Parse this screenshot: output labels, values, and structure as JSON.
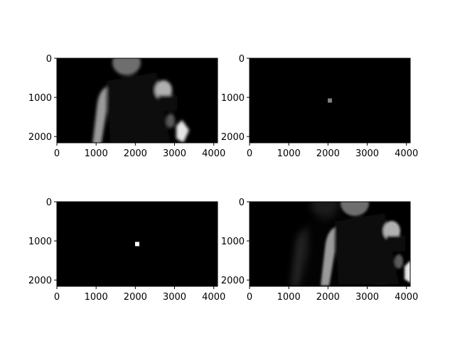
{
  "chart_data": [
    {
      "type": "image",
      "content": "photo-grayscale",
      "description_hint": "image",
      "x_ticks": [
        0,
        1000,
        2000,
        3000,
        4000
      ],
      "y_ticks": [
        0,
        1000,
        2000
      ],
      "xlim": [
        0,
        4096
      ],
      "ylim": [
        2160,
        0
      ]
    },
    {
      "type": "image",
      "content": "dot",
      "dot": {
        "x": 2048,
        "y": 1080,
        "intensity": 0.5
      },
      "x_ticks": [
        0,
        1000,
        2000,
        3000,
        4000
      ],
      "y_ticks": [
        0,
        1000,
        2000
      ],
      "xlim": [
        0,
        4096
      ],
      "ylim": [
        2160,
        0
      ]
    },
    {
      "type": "image",
      "content": "dot",
      "dot": {
        "x": 2048,
        "y": 1080,
        "intensity": 1.0
      },
      "x_ticks": [
        0,
        1000,
        2000,
        3000,
        4000
      ],
      "y_ticks": [
        0,
        1000,
        2000
      ],
      "xlim": [
        0,
        4096
      ],
      "ylim": [
        2160,
        0
      ]
    },
    {
      "type": "image",
      "content": "photo-grayscale-shifted",
      "x_ticks": [
        0,
        1000,
        2000,
        3000,
        4000
      ],
      "y_ticks": [
        0,
        1000,
        2000
      ],
      "xlim": [
        0,
        4096
      ],
      "ylim": [
        2160,
        0
      ]
    }
  ]
}
